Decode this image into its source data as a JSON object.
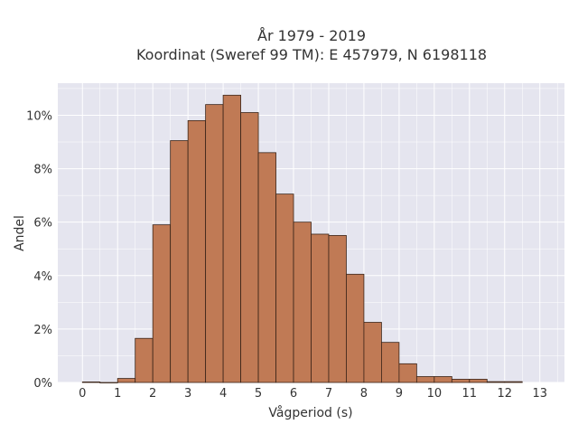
{
  "chart_data": {
    "type": "bar",
    "title": "År 1979 - 2019",
    "subtitle": "Koordinat (Sweref 99 TM): E 457979, N 6198118",
    "xlabel": "Vågperiod (s)",
    "ylabel": "Andel",
    "xlim": [
      -0.7,
      13.7
    ],
    "ylim": [
      0,
      11.2
    ],
    "x_ticks": [
      0,
      1,
      2,
      3,
      4,
      5,
      6,
      7,
      8,
      9,
      10,
      11,
      12,
      13
    ],
    "x_tick_labels": [
      "0",
      "1",
      "2",
      "3",
      "4",
      "5",
      "6",
      "7",
      "8",
      "9",
      "10",
      "11",
      "12",
      "13"
    ],
    "y_ticks": [
      0,
      2,
      4,
      6,
      8,
      10
    ],
    "y_tick_labels": [
      "0%",
      "2%",
      "4%",
      "6%",
      "8%",
      "10%"
    ],
    "bin_width": 0.5,
    "bins": [
      {
        "x0": 0.0,
        "x1": 0.5,
        "value": 0.02
      },
      {
        "x0": 0.5,
        "x1": 1.0,
        "value": 0.0
      },
      {
        "x0": 1.0,
        "x1": 1.5,
        "value": 0.15
      },
      {
        "x0": 1.5,
        "x1": 2.0,
        "value": 1.65
      },
      {
        "x0": 2.0,
        "x1": 2.5,
        "value": 5.9
      },
      {
        "x0": 2.5,
        "x1": 3.0,
        "value": 9.05
      },
      {
        "x0": 3.0,
        "x1": 3.5,
        "value": 9.8
      },
      {
        "x0": 3.5,
        "x1": 4.0,
        "value": 10.4
      },
      {
        "x0": 4.0,
        "x1": 4.5,
        "value": 10.75
      },
      {
        "x0": 4.5,
        "x1": 5.0,
        "value": 10.1
      },
      {
        "x0": 5.0,
        "x1": 5.5,
        "value": 8.6
      },
      {
        "x0": 5.5,
        "x1": 6.0,
        "value": 7.05
      },
      {
        "x0": 6.0,
        "x1": 6.5,
        "value": 6.0
      },
      {
        "x0": 6.5,
        "x1": 7.0,
        "value": 5.55
      },
      {
        "x0": 7.0,
        "x1": 7.5,
        "value": 5.5
      },
      {
        "x0": 7.5,
        "x1": 8.0,
        "value": 4.05
      },
      {
        "x0": 8.0,
        "x1": 8.5,
        "value": 2.25
      },
      {
        "x0": 8.5,
        "x1": 9.0,
        "value": 1.5
      },
      {
        "x0": 9.0,
        "x1": 9.5,
        "value": 0.7
      },
      {
        "x0": 9.5,
        "x1": 10.0,
        "value": 0.22
      },
      {
        "x0": 10.0,
        "x1": 10.5,
        "value": 0.22
      },
      {
        "x0": 10.5,
        "x1": 11.0,
        "value": 0.12
      },
      {
        "x0": 11.0,
        "x1": 11.5,
        "value": 0.12
      },
      {
        "x0": 11.5,
        "x1": 12.0,
        "value": 0.03
      },
      {
        "x0": 12.0,
        "x1": 12.5,
        "value": 0.03
      }
    ],
    "grid": true,
    "colors": {
      "bar_fill": "#c07a55",
      "bar_edge": "#3a2418",
      "plot_bg": "#e5e5ef",
      "grid": "#ffffff"
    }
  }
}
